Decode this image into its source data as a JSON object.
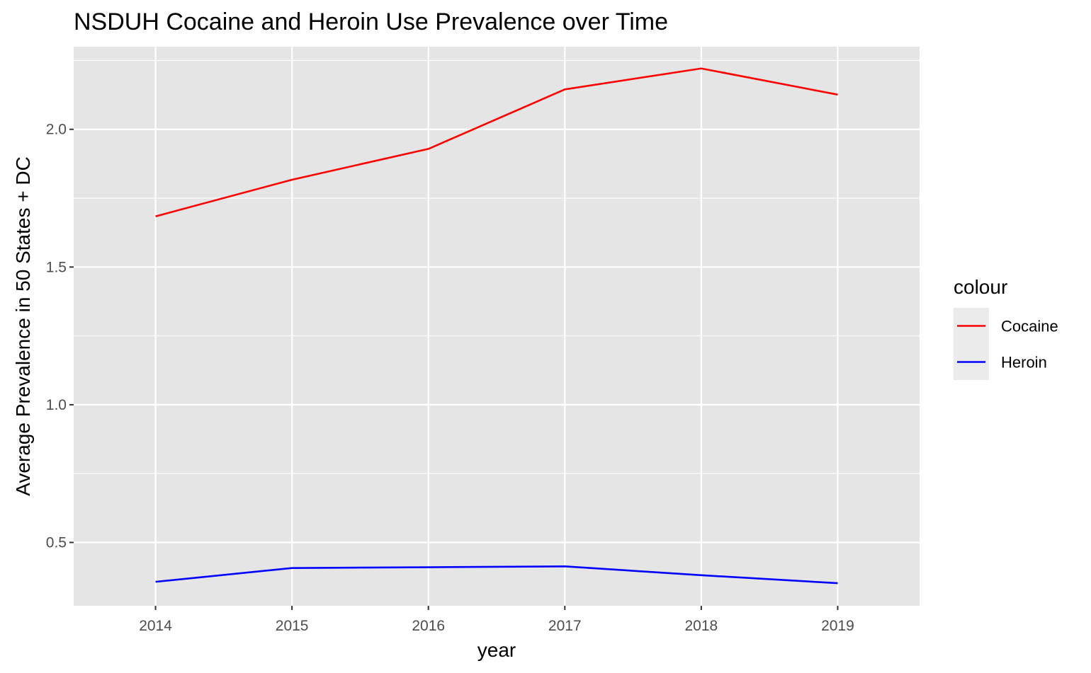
{
  "chart_data": {
    "type": "line",
    "title": "NSDUH Cocaine and Heroin Use Prevalence over Time",
    "xlabel": "year",
    "ylabel": "Average Prevalence in 50 States + DC",
    "x": [
      2014,
      2015,
      2016,
      2017,
      2018,
      2019
    ],
    "x_ticks": [
      "2014",
      "2015",
      "2016",
      "2017",
      "2018",
      "2019"
    ],
    "y_ticks": [
      "0.5",
      "1.0",
      "1.5",
      "2.0"
    ],
    "xlim": [
      2013.4,
      2019.6
    ],
    "ylim": [
      0.27,
      2.3
    ],
    "grid": true,
    "legend_title": "colour",
    "legend_position": "right",
    "series": [
      {
        "name": "Cocaine",
        "color": "#ff0000",
        "values": [
          1.684,
          1.817,
          1.929,
          2.145,
          2.221,
          2.126
        ]
      },
      {
        "name": "Heroin",
        "color": "#0000ff",
        "values": [
          0.357,
          0.407,
          0.41,
          0.413,
          0.381,
          0.352
        ]
      }
    ],
    "colors": {
      "panel_background": "#e5e5e5",
      "grid": "#ffffff",
      "legend_key_background": "#ebebeb"
    }
  }
}
